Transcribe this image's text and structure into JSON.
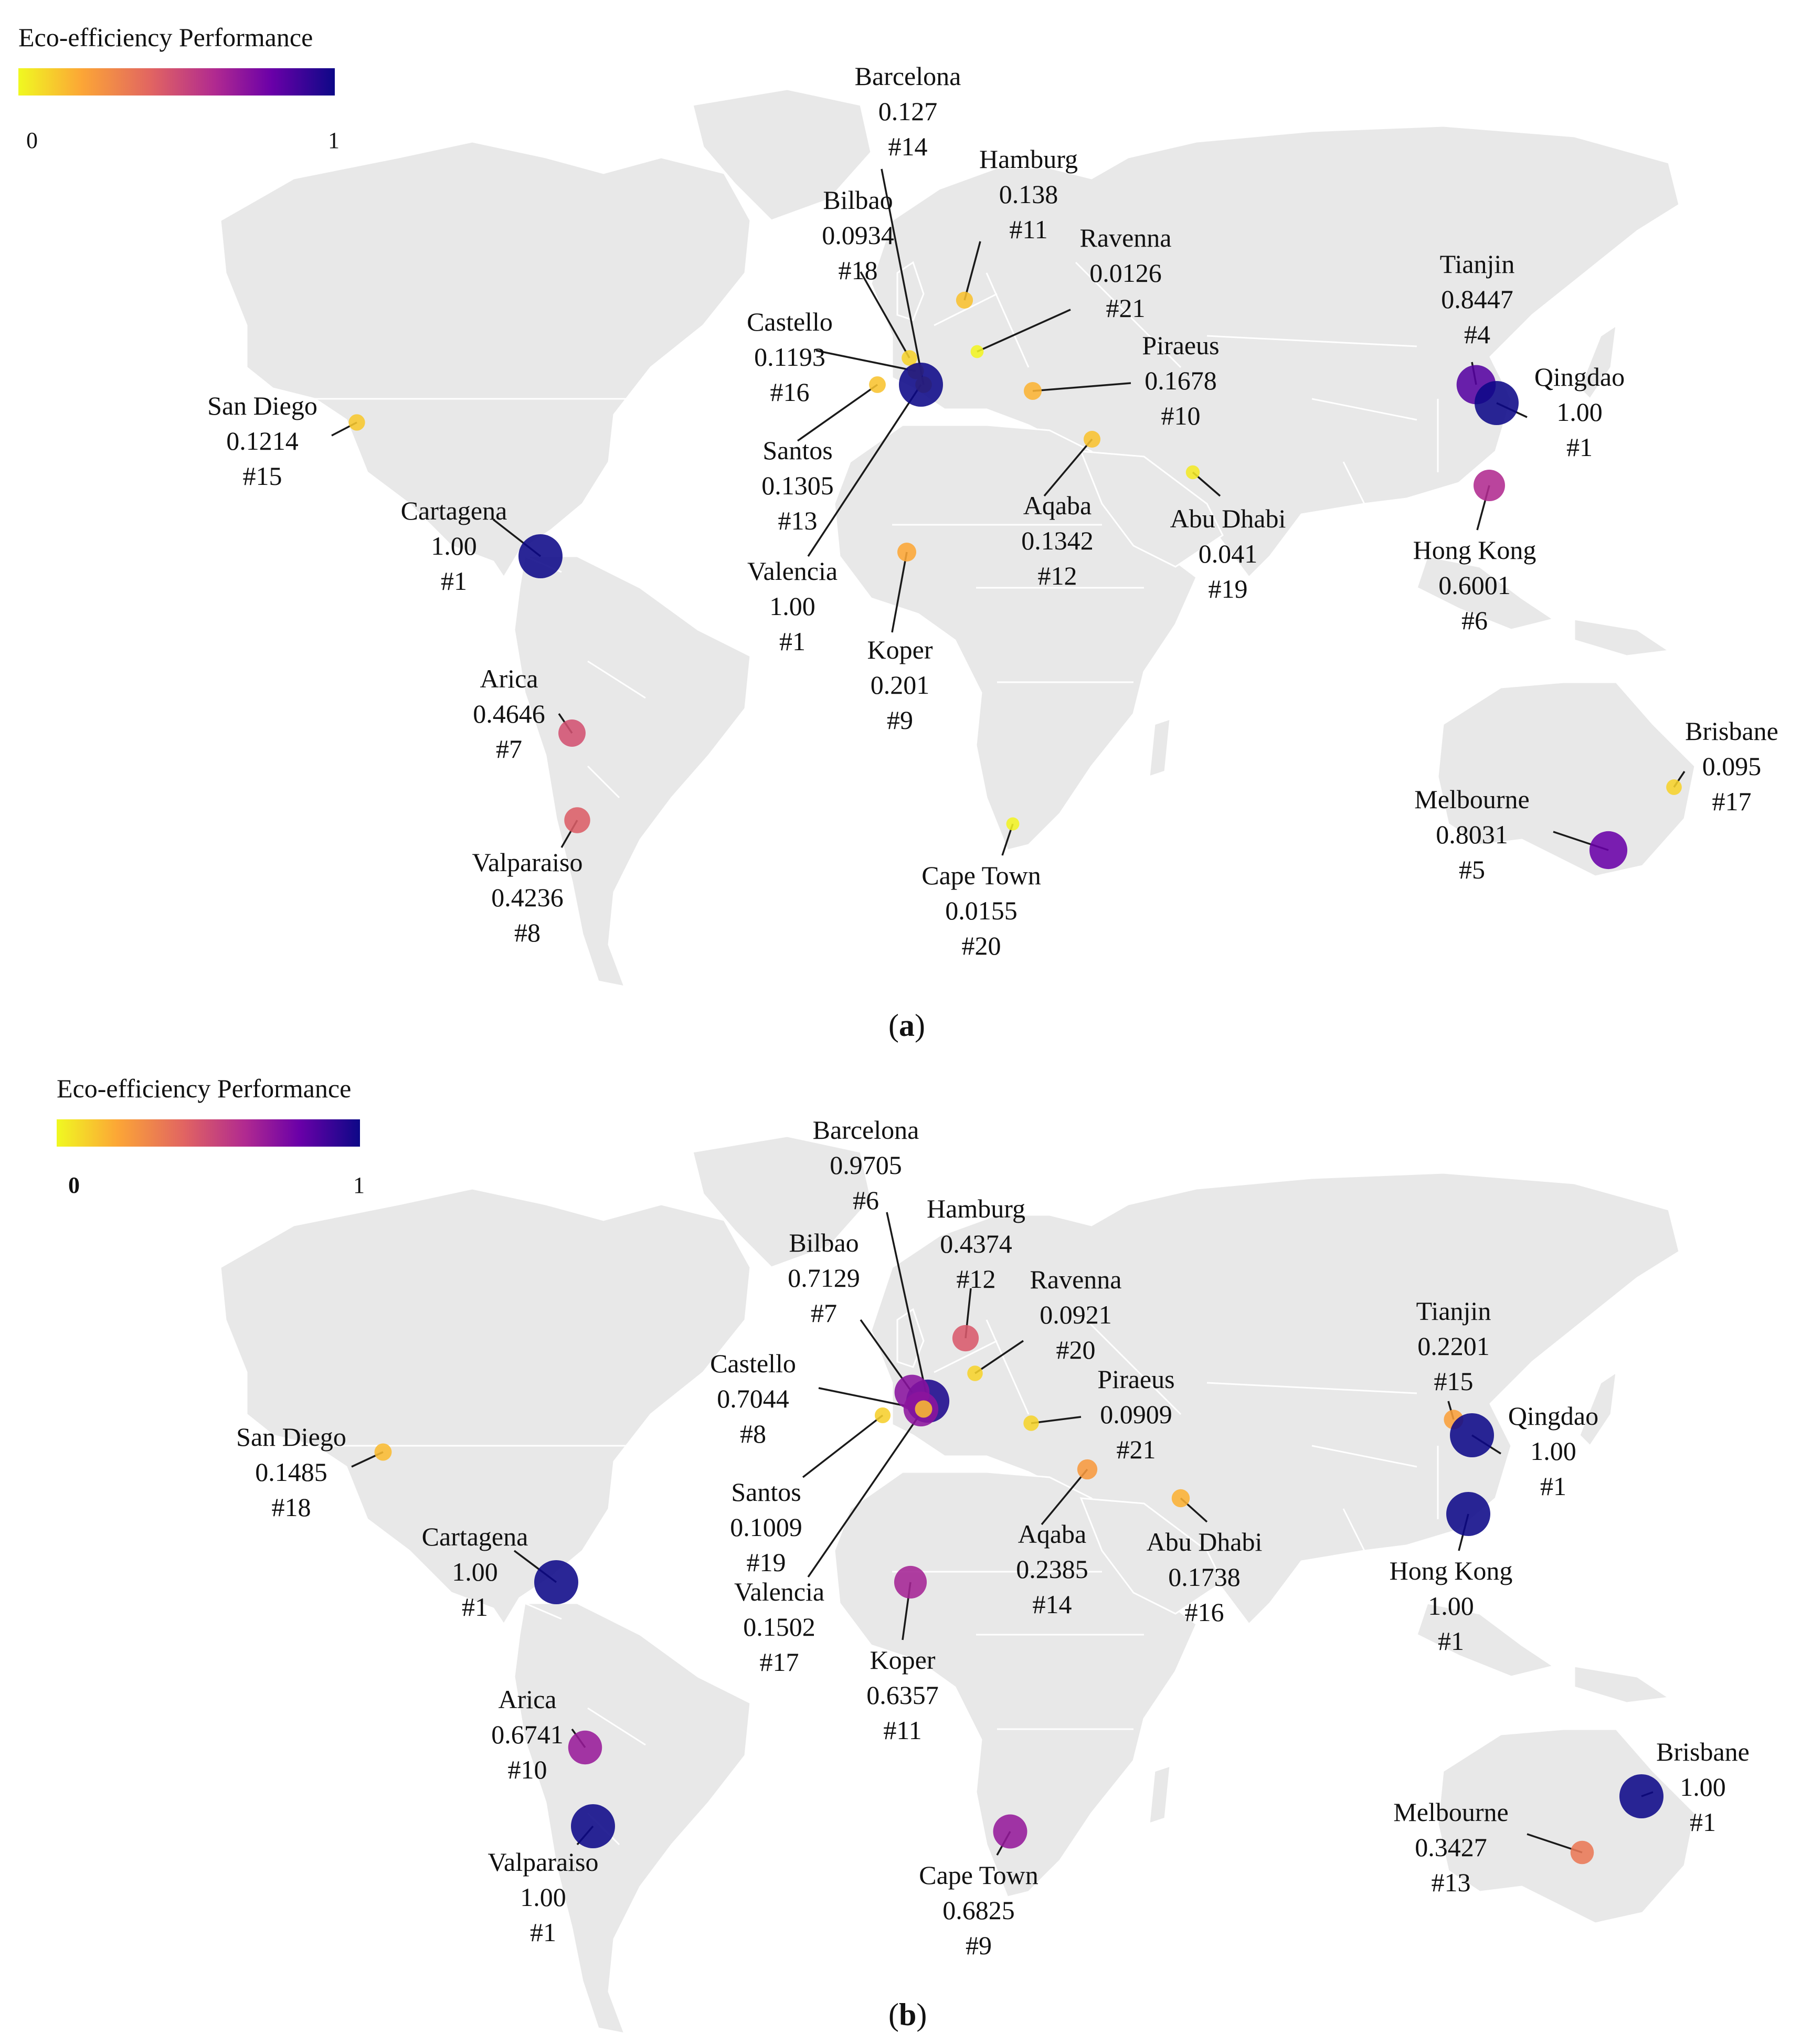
{
  "legend_title": "Eco-efficiency  Performance",
  "legend_min": "0",
  "legend_max": "1",
  "colorscale": [
    "#f0f921",
    "#fca636",
    "#e16462",
    "#b12a90",
    "#6a00a8",
    "#0d0887"
  ],
  "panels": [
    {
      "id": "a",
      "caption": "(a)",
      "caption_letter": "a",
      "ports": [
        {
          "key": "barcelona",
          "name": "Barcelona",
          "value": "0.127",
          "rank": "#14",
          "score": 0.127
        },
        {
          "key": "hamburg",
          "name": "Hamburg",
          "value": "0.138",
          "rank": "#11",
          "score": 0.138
        },
        {
          "key": "ravenna",
          "name": "Ravenna",
          "value": "0.0126",
          "rank": "#21",
          "score": 0.0126
        },
        {
          "key": "bilbao",
          "name": "Bilbao",
          "value": "0.0934",
          "rank": "#18",
          "score": 0.0934
        },
        {
          "key": "castello",
          "name": "Castello",
          "value": "0.1193",
          "rank": "#16",
          "score": 0.1193
        },
        {
          "key": "piraeus",
          "name": "Piraeus",
          "value": "0.1678",
          "rank": "#10",
          "score": 0.1678
        },
        {
          "key": "santos",
          "name": "Santos",
          "value": "0.1305",
          "rank": "#13",
          "score": 0.1305
        },
        {
          "key": "valencia",
          "name": "Valencia",
          "value": "1.00",
          "rank": "#1",
          "score": 1.0
        },
        {
          "key": "aqaba",
          "name": "Aqaba",
          "value": "0.1342",
          "rank": "#12",
          "score": 0.1342
        },
        {
          "key": "abudhabi",
          "name": "Abu Dhabi",
          "value": "0.041",
          "rank": "#19",
          "score": 0.041
        },
        {
          "key": "koper",
          "name": "Koper",
          "value": "0.201",
          "rank": "#9",
          "score": 0.201
        },
        {
          "key": "capetown",
          "name": "Cape Town",
          "value": "0.0155",
          "rank": "#20",
          "score": 0.0155
        },
        {
          "key": "sandiego",
          "name": "San Diego",
          "value": "0.1214",
          "rank": "#15",
          "score": 0.1214
        },
        {
          "key": "cartagena",
          "name": "Cartagena",
          "value": "1.00",
          "rank": "#1",
          "score": 1.0
        },
        {
          "key": "arica",
          "name": "Arica",
          "value": "0.4646",
          "rank": "#7",
          "score": 0.4646
        },
        {
          "key": "valparaiso",
          "name": "Valparaiso",
          "value": "0.4236",
          "rank": "#8",
          "score": 0.4236
        },
        {
          "key": "tianjin",
          "name": "Tianjin",
          "value": "0.8447",
          "rank": "#4",
          "score": 0.8447
        },
        {
          "key": "qingdao",
          "name": "Qingdao",
          "value": "1.00",
          "rank": "#1",
          "score": 1.0
        },
        {
          "key": "hongkong",
          "name": "Hong Kong",
          "value": "0.6001",
          "rank": "#6",
          "score": 0.6001
        },
        {
          "key": "brisbane",
          "name": "Brisbane",
          "value": "0.095",
          "rank": "#17",
          "score": 0.095
        },
        {
          "key": "melbourne",
          "name": "Melbourne",
          "value": "0.8031",
          "rank": "#5",
          "score": 0.8031
        }
      ]
    },
    {
      "id": "b",
      "caption": "(b)",
      "caption_letter": "b",
      "ports": [
        {
          "key": "barcelona",
          "name": "Barcelona",
          "value": "0.9705",
          "rank": "#6",
          "score": 0.9705
        },
        {
          "key": "hamburg",
          "name": "Hamburg",
          "value": "0.4374",
          "rank": "#12",
          "score": 0.4374
        },
        {
          "key": "ravenna",
          "name": "Ravenna",
          "value": "0.0921",
          "rank": "#20",
          "score": 0.0921
        },
        {
          "key": "bilbao",
          "name": "Bilbao",
          "value": "0.7129",
          "rank": "#7",
          "score": 0.7129
        },
        {
          "key": "castello",
          "name": "Castello",
          "value": "0.7044",
          "rank": "#8",
          "score": 0.7044
        },
        {
          "key": "piraeus",
          "name": "Piraeus",
          "value": "0.0909",
          "rank": "#21",
          "score": 0.0909
        },
        {
          "key": "santos",
          "name": "Santos",
          "value": "0.1009",
          "rank": "#19",
          "score": 0.1009
        },
        {
          "key": "valencia",
          "name": "Valencia",
          "value": "0.1502",
          "rank": "#17",
          "score": 0.1502
        },
        {
          "key": "aqaba",
          "name": "Aqaba",
          "value": "0.2385",
          "rank": "#14",
          "score": 0.2385
        },
        {
          "key": "abudhabi",
          "name": "Abu Dhabi",
          "value": "0.1738",
          "rank": "#16",
          "score": 0.1738
        },
        {
          "key": "koper",
          "name": "Koper",
          "value": "0.6357",
          "rank": "#11",
          "score": 0.6357
        },
        {
          "key": "capetown",
          "name": "Cape Town",
          "value": "0.6825",
          "rank": "#9",
          "score": 0.6825
        },
        {
          "key": "sandiego",
          "name": "San Diego",
          "value": "0.1485",
          "rank": "#18",
          "score": 0.1485
        },
        {
          "key": "cartagena",
          "name": "Cartagena",
          "value": "1.00",
          "rank": "#1",
          "score": 1.0
        },
        {
          "key": "arica",
          "name": "Arica",
          "value": "0.6741",
          "rank": "#10",
          "score": 0.6741
        },
        {
          "key": "valparaiso",
          "name": "Valparaiso",
          "value": "1.00",
          "rank": "#1",
          "score": 1.0
        },
        {
          "key": "tianjin",
          "name": "Tianjin",
          "value": "0.2201",
          "rank": "#15",
          "score": 0.2201
        },
        {
          "key": "qingdao",
          "name": "Qingdao",
          "value": "1.00",
          "rank": "#1",
          "score": 1.0
        },
        {
          "key": "hongkong",
          "name": "Hong Kong",
          "value": "1.00",
          "rank": "#1",
          "score": 1.0
        },
        {
          "key": "brisbane",
          "name": "Brisbane",
          "value": "1.00",
          "rank": "#1",
          "score": 1.0
        },
        {
          "key": "melbourne",
          "name": "Melbourne",
          "value": "0.3427",
          "rank": "#13",
          "score": 0.3427
        }
      ]
    }
  ]
}
